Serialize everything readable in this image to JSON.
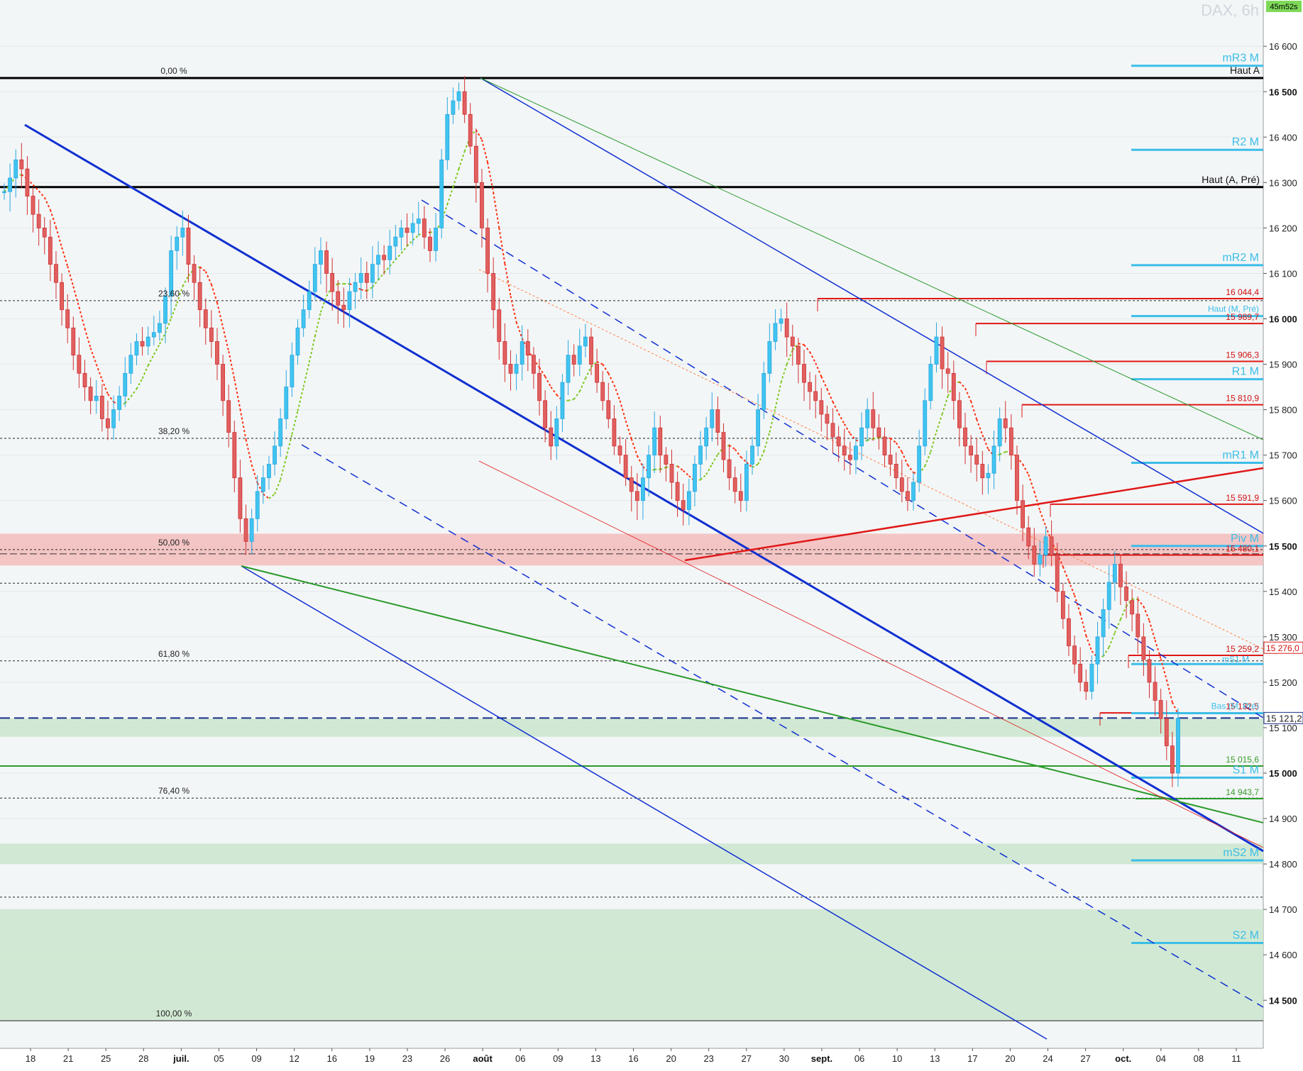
{
  "header": {
    "title": "DAX, 6h",
    "timer": "45m52s",
    "timer_bg": "#7ed957"
  },
  "chart_data": {
    "type": "candlestick",
    "title": "DAX, 6h",
    "ylim": [
      14420,
      16660
    ],
    "y_ticks": [
      "16 600",
      "16 500",
      "16 400",
      "16 300",
      "16 200",
      "16 100",
      "16 000",
      "15 900",
      "15 800",
      "15 700",
      "15 600",
      "15 500",
      "15 400",
      "15 300",
      "15 200",
      "15 100",
      "15 000",
      "14 900",
      "14 800",
      "14 700",
      "14 600",
      "14 500"
    ],
    "y_ticks_bold": [
      "16 500",
      "16 000",
      "15 500",
      "15 000",
      "14 500"
    ],
    "x_ticks": [
      {
        "label": "18",
        "bold": false
      },
      {
        "label": "21",
        "bold": false
      },
      {
        "label": "25",
        "bold": false
      },
      {
        "label": "28",
        "bold": false
      },
      {
        "label": "juil.",
        "bold": true
      },
      {
        "label": "05",
        "bold": false
      },
      {
        "label": "09",
        "bold": false
      },
      {
        "label": "12",
        "bold": false
      },
      {
        "label": "16",
        "bold": false
      },
      {
        "label": "19",
        "bold": false
      },
      {
        "label": "23",
        "bold": false
      },
      {
        "label": "26",
        "bold": false
      },
      {
        "label": "août",
        "bold": true
      },
      {
        "label": "06",
        "bold": false
      },
      {
        "label": "09",
        "bold": false
      },
      {
        "label": "13",
        "bold": false
      },
      {
        "label": "16",
        "bold": false
      },
      {
        "label": "20",
        "bold": false
      },
      {
        "label": "23",
        "bold": false
      },
      {
        "label": "27",
        "bold": false
      },
      {
        "label": "30",
        "bold": false
      },
      {
        "label": "sept.",
        "bold": true
      },
      {
        "label": "06",
        "bold": false
      },
      {
        "label": "10",
        "bold": false
      },
      {
        "label": "13",
        "bold": false
      },
      {
        "label": "17",
        "bold": false
      },
      {
        "label": "20",
        "bold": false
      },
      {
        "label": "24",
        "bold": false
      },
      {
        "label": "27",
        "bold": false
      },
      {
        "label": "oct.",
        "bold": true
      },
      {
        "label": "04",
        "bold": false
      },
      {
        "label": "08",
        "bold": false
      },
      {
        "label": "11",
        "bold": false
      }
    ],
    "fib_levels": [
      {
        "label": "0,00 %",
        "price": 16530
      },
      {
        "label": "23,60 %",
        "price": 16040
      },
      {
        "label": "38,20 %",
        "price": 15737
      },
      {
        "label": "50,00 %",
        "price": 15492
      },
      {
        "label": "61,80 %",
        "price": 15247
      },
      {
        "label": "76,40 %",
        "price": 14945
      },
      {
        "label": "100,00 %",
        "price": 14455
      }
    ],
    "extra_dotted_levels": [
      15418,
      14727
    ],
    "horizontal_levels": [
      {
        "label": "Haut A",
        "price": 16530
      },
      {
        "label": "Haut (A, Pré)",
        "price": 16290
      }
    ],
    "resistance_levels": [
      {
        "label": "16 044,4",
        "price": 16044.4
      },
      {
        "label": "15 989,7",
        "price": 15989.7
      },
      {
        "label": "15 906,3",
        "price": 15906.3
      },
      {
        "label": "15 810,9",
        "price": 15810.9
      },
      {
        "label": "15 591,9",
        "price": 15591.9
      },
      {
        "label": "15 480,1",
        "price": 15480.1
      },
      {
        "label": "15 259,2",
        "price": 15259.2
      },
      {
        "label": "15 132,5",
        "price": 15132.5
      }
    ],
    "pivot_levels": [
      {
        "label": "mR3 M",
        "price": 16557
      },
      {
        "label": "R2 M",
        "price": 16372
      },
      {
        "label": "mR2 M",
        "price": 16118
      },
      {
        "label": "Haut (M, Pré)",
        "price": 16006
      },
      {
        "label": "R1 M",
        "price": 15867
      },
      {
        "label": "mR1 M",
        "price": 15683
      },
      {
        "label": "Piv M",
        "price": 15500
      },
      {
        "label": "Bas (M, Pré)",
        "price": 15132
      },
      {
        "label": "S1 M",
        "price": 14990
      },
      {
        "label": "mS2 M",
        "price": 14808
      },
      {
        "label": "S2 M",
        "price": 14626
      }
    ],
    "pivot_small_mark": "mS1 M",
    "green_levels": [
      {
        "label": "15 015,6",
        "price": 15015.6
      },
      {
        "label": "14 943,7",
        "price": 14943.7
      }
    ],
    "current_price": {
      "label": "15 121,2",
      "price": 15121.2
    },
    "last_close_box": {
      "label": "15 276,0",
      "price": 15276.0
    },
    "zones": [
      {
        "kind": "resistance",
        "from": 15457,
        "to": 15527
      },
      {
        "kind": "support",
        "from": 15080,
        "to": 15120
      },
      {
        "kind": "support",
        "from": 14800,
        "to": 14845
      },
      {
        "kind": "support",
        "from": 14455,
        "to": 14700
      }
    ],
    "closes": [
      16280,
      16310,
      16350,
      16330,
      16270,
      16230,
      16200,
      16180,
      16120,
      16080,
      16020,
      15980,
      15920,
      15880,
      15850,
      15820,
      15830,
      15780,
      15760,
      15800,
      15830,
      15880,
      15920,
      15950,
      15940,
      15960,
      15970,
      15990,
      16050,
      16150,
      16180,
      16200,
      16120,
      16080,
      16020,
      15980,
      15950,
      15900,
      15820,
      15750,
      15650,
      15560,
      15510,
      15560,
      15620,
      15650,
      15680,
      15720,
      15780,
      15850,
      15920,
      15980,
      16020,
      16060,
      16120,
      16150,
      16100,
      16060,
      16030,
      16020,
      16060,
      16080,
      16100,
      16080,
      16120,
      16140,
      16130,
      16160,
      16180,
      16200,
      16190,
      16210,
      16220,
      16180,
      16150,
      16200,
      16350,
      16450,
      16480,
      16500,
      16450,
      16380,
      16300,
      16200,
      16100,
      16020,
      15950,
      15900,
      15880,
      15900,
      15950,
      15920,
      15880,
      15820,
      15760,
      15720,
      15780,
      15860,
      15920,
      15900,
      15940,
      15960,
      15900,
      15860,
      15820,
      15780,
      15720,
      15700,
      15650,
      15620,
      15600,
      15650,
      15700,
      15760,
      15700,
      15680,
      15640,
      15600,
      15580,
      15620,
      15680,
      15720,
      15760,
      15800,
      15750,
      15690,
      15650,
      15620,
      15600,
      15680,
      15720,
      15800,
      15880,
      15950,
      15990,
      16000,
      15960,
      15940,
      15900,
      15860,
      15840,
      15820,
      15790,
      15770,
      15740,
      15720,
      15700,
      15690,
      15720,
      15760,
      15800,
      15760,
      15740,
      15700,
      15680,
      15650,
      15620,
      15600,
      15640,
      15720,
      15820,
      15900,
      15960,
      15890,
      15880,
      15820,
      15760,
      15720,
      15700,
      15680,
      15650,
      15660,
      15720,
      15780,
      15760,
      15700,
      15600,
      15540,
      15500,
      15460,
      15480,
      15520,
      15480,
      15400,
      15340,
      15280,
      15240,
      15200,
      15180,
      15240,
      15300,
      15360,
      15420,
      15460,
      15410,
      15380,
      15350,
      15300,
      15250,
      15200,
      15160,
      15120,
      15060,
      15000,
      15121
    ]
  }
}
